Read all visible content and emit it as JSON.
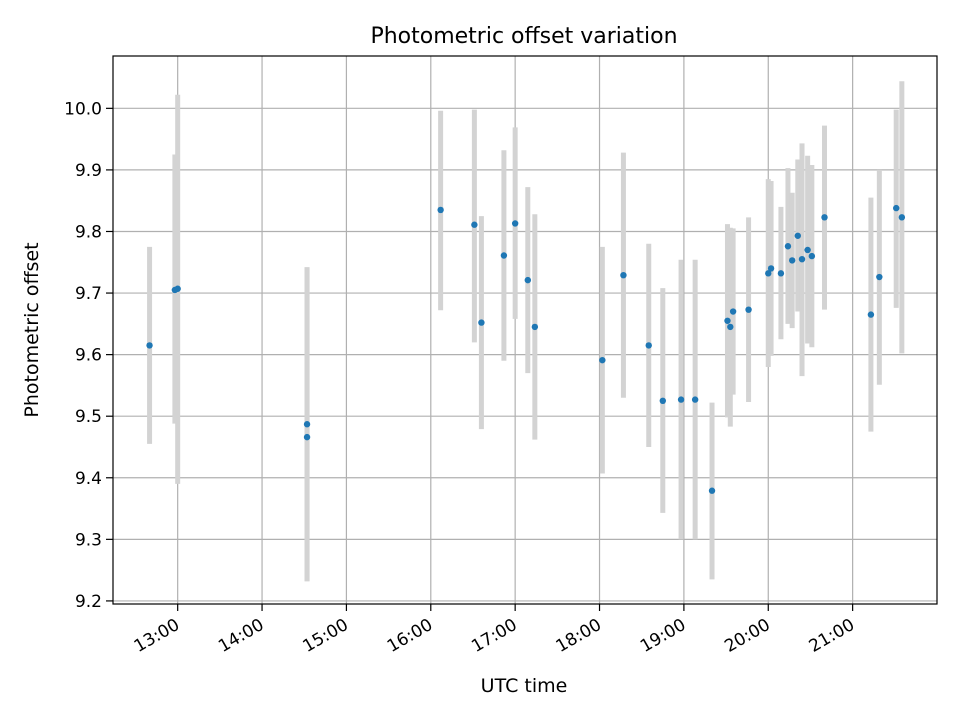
{
  "chart_data": {
    "type": "scatter",
    "title": "Photometric offset variation",
    "xlabel": "UTC time",
    "ylabel": "Photometric offset",
    "x_ticks": [
      "13:00",
      "14:00",
      "15:00",
      "16:00",
      "17:00",
      "18:00",
      "19:00",
      "20:00",
      "21:00"
    ],
    "y_ticks": [
      "9.2",
      "9.3",
      "9.4",
      "9.5",
      "9.6",
      "9.7",
      "9.8",
      "9.9",
      "10.0"
    ],
    "xlim": [
      "12:14",
      "22:00"
    ],
    "ylim": [
      9.195,
      10.085
    ],
    "grid": true,
    "marker_color": "#1f77b4",
    "errorbar_color": "#d3d3d3",
    "points": [
      {
        "x": "12:40",
        "y": 9.615,
        "err_low": 9.455,
        "err_high": 9.775
      },
      {
        "x": "12:58",
        "y": 9.705,
        "err_low": 9.488,
        "err_high": 9.925
      },
      {
        "x": "13:00",
        "y": 9.707,
        "err_low": 9.39,
        "err_high": 10.022
      },
      {
        "x": "14:32",
        "y": 9.487,
        "err_low": 9.232,
        "err_high": 9.742
      },
      {
        "x": "14:32",
        "y": 9.466,
        "err_low": 9.232,
        "err_high": 9.742
      },
      {
        "x": "16:07",
        "y": 9.835,
        "err_low": 9.672,
        "err_high": 9.996
      },
      {
        "x": "16:31",
        "y": 9.811,
        "err_low": 9.62,
        "err_high": 9.998
      },
      {
        "x": "16:36",
        "y": 9.652,
        "err_low": 9.479,
        "err_high": 9.825
      },
      {
        "x": "16:52",
        "y": 9.761,
        "err_low": 9.59,
        "err_high": 9.932
      },
      {
        "x": "17:00",
        "y": 9.813,
        "err_low": 9.658,
        "err_high": 9.969
      },
      {
        "x": "17:09",
        "y": 9.721,
        "err_low": 9.57,
        "err_high": 9.872
      },
      {
        "x": "17:14",
        "y": 9.645,
        "err_low": 9.462,
        "err_high": 9.828
      },
      {
        "x": "18:02",
        "y": 9.591,
        "err_low": 9.407,
        "err_high": 9.775
      },
      {
        "x": "18:17",
        "y": 9.729,
        "err_low": 9.53,
        "err_high": 9.928
      },
      {
        "x": "18:35",
        "y": 9.615,
        "err_low": 9.45,
        "err_high": 9.78
      },
      {
        "x": "18:45",
        "y": 9.525,
        "err_low": 9.343,
        "err_high": 9.708
      },
      {
        "x": "18:58",
        "y": 9.527,
        "err_low": 9.3,
        "err_high": 9.754
      },
      {
        "x": "19:08",
        "y": 9.527,
        "err_low": 9.3,
        "err_high": 9.754
      },
      {
        "x": "19:20",
        "y": 9.379,
        "err_low": 9.235,
        "err_high": 9.522
      },
      {
        "x": "19:31",
        "y": 9.655,
        "err_low": 9.498,
        "err_high": 9.812
      },
      {
        "x": "19:33",
        "y": 9.645,
        "err_low": 9.483,
        "err_high": 9.806
      },
      {
        "x": "19:35",
        "y": 9.67,
        "err_low": 9.535,
        "err_high": 9.805
      },
      {
        "x": "19:46",
        "y": 9.673,
        "err_low": 9.523,
        "err_high": 9.823
      },
      {
        "x": "20:00",
        "y": 9.732,
        "err_low": 9.58,
        "err_high": 9.885
      },
      {
        "x": "20:02",
        "y": 9.74,
        "err_low": 9.598,
        "err_high": 9.882
      },
      {
        "x": "20:09",
        "y": 9.732,
        "err_low": 9.625,
        "err_high": 9.84
      },
      {
        "x": "20:14",
        "y": 9.776,
        "err_low": 9.65,
        "err_high": 9.903
      },
      {
        "x": "20:17",
        "y": 9.753,
        "err_low": 9.643,
        "err_high": 9.863
      },
      {
        "x": "20:21",
        "y": 9.793,
        "err_low": 9.67,
        "err_high": 9.917
      },
      {
        "x": "20:24",
        "y": 9.755,
        "err_low": 9.565,
        "err_high": 9.943
      },
      {
        "x": "20:28",
        "y": 9.77,
        "err_low": 9.618,
        "err_high": 9.923
      },
      {
        "x": "20:31",
        "y": 9.76,
        "err_low": 9.612,
        "err_high": 9.908
      },
      {
        "x": "20:40",
        "y": 9.823,
        "err_low": 9.673,
        "err_high": 9.972
      },
      {
        "x": "21:13",
        "y": 9.665,
        "err_low": 9.475,
        "err_high": 9.855
      },
      {
        "x": "21:19",
        "y": 9.726,
        "err_low": 9.551,
        "err_high": 9.9
      },
      {
        "x": "21:31",
        "y": 9.838,
        "err_low": 9.676,
        "err_high": 9.998
      },
      {
        "x": "21:35",
        "y": 9.823,
        "err_low": 9.602,
        "err_high": 10.044
      }
    ]
  }
}
